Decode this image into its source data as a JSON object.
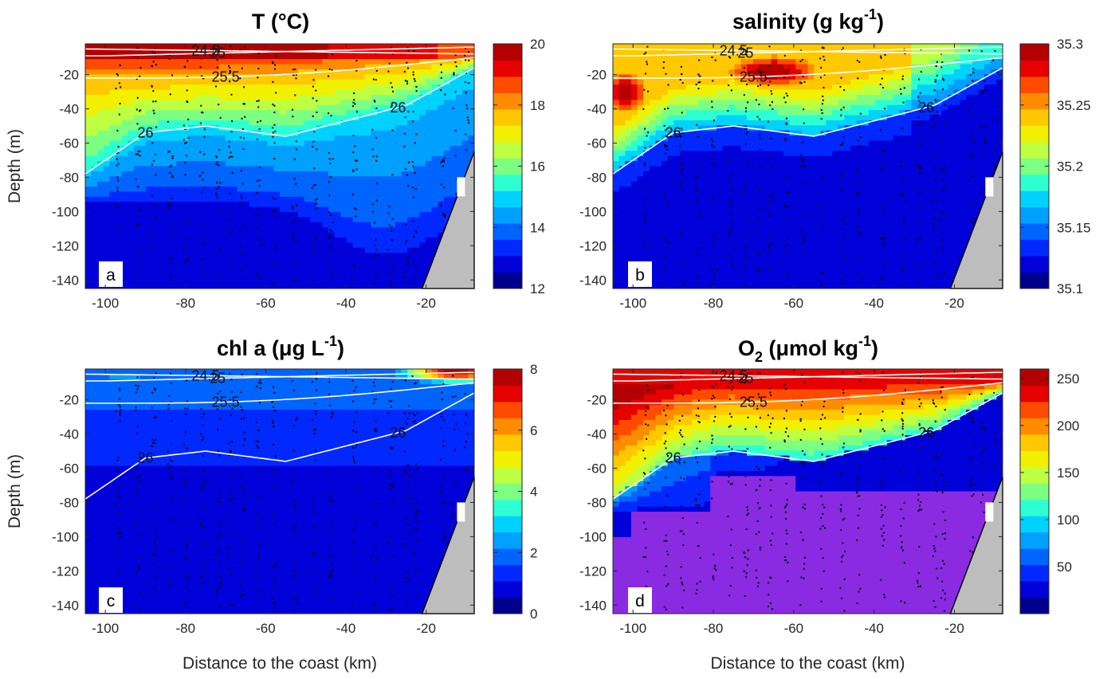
{
  "chart_data": [
    {
      "type": "heatmap",
      "panel": "a",
      "title_main": "T (°C)",
      "title_sup": "",
      "title_tail": "",
      "xlabel": "",
      "ylabel": "Depth (m)",
      "xlim": [
        -105,
        -8
      ],
      "ylim": [
        -145,
        -2
      ],
      "xticks": [
        "-100",
        "-80",
        "-60",
        "-40",
        "-20"
      ],
      "yticks": [
        "-20",
        "-40",
        "-60",
        "-80",
        "-100",
        "-120",
        "-140"
      ],
      "colorbar": {
        "min": 12,
        "max": 20,
        "ticks": [
          "12",
          "14",
          "16",
          "18",
          "20"
        ]
      },
      "isopycnals": [
        "24.5",
        "25",
        "25.5",
        "26"
      ]
    },
    {
      "type": "heatmap",
      "panel": "b",
      "title_main": "salinity (g kg",
      "title_sup": "-1",
      "title_tail": ")",
      "xlabel": "",
      "ylabel": "",
      "xlim": [
        -105,
        -8
      ],
      "ylim": [
        -145,
        -2
      ],
      "xticks": [
        "-100",
        "-80",
        "-60",
        "-40",
        "-20"
      ],
      "yticks": [
        "-20",
        "-40",
        "-60",
        "-80",
        "-100",
        "-120",
        "-140"
      ],
      "colorbar": {
        "min": 35.1,
        "max": 35.3,
        "ticks": [
          "35.1",
          "35.15",
          "35.2",
          "35.25",
          "35.3"
        ]
      },
      "isopycnals": [
        "24.5",
        "25",
        "25.5",
        "26"
      ]
    },
    {
      "type": "heatmap",
      "panel": "c",
      "title_main": "chl a (μg L",
      "title_sup": "-1",
      "title_tail": ")",
      "xlabel": "Distance to the coast (km)",
      "ylabel": "Depth (m)",
      "xlim": [
        -105,
        -8
      ],
      "ylim": [
        -145,
        -2
      ],
      "xticks": [
        "-100",
        "-80",
        "-60",
        "-40",
        "-20"
      ],
      "yticks": [
        "-20",
        "-40",
        "-60",
        "-80",
        "-100",
        "-120",
        "-140"
      ],
      "colorbar": {
        "min": 0,
        "max": 8,
        "ticks": [
          "0",
          "2",
          "4",
          "6",
          "8"
        ]
      },
      "isopycnals": [
        "24.5",
        "25",
        "25.5",
        "26"
      ]
    },
    {
      "type": "heatmap",
      "panel": "d",
      "title_main": "O",
      "title_sub": "2",
      "title_mid": " (μmol kg",
      "title_sup": "-1",
      "title_tail": ")",
      "xlabel": "Distance to the coast (km)",
      "ylabel": "",
      "xlim": [
        -105,
        -8
      ],
      "ylim": [
        -145,
        -2
      ],
      "xticks": [
        "-100",
        "-80",
        "-60",
        "-40",
        "-20"
      ],
      "yticks": [
        "-20",
        "-40",
        "-60",
        "-80",
        "-100",
        "-120",
        "-140"
      ],
      "colorbar": {
        "min": 0,
        "max": 260,
        "ticks": [
          "50",
          "100",
          "150",
          "200",
          "250"
        ]
      },
      "isopycnals": [
        "24.5",
        "25",
        "25.5",
        "26"
      ]
    }
  ],
  "colors": {
    "colormap": [
      "#00008f",
      "#0000d9",
      "#0028ff",
      "#0064ff",
      "#00a0ff",
      "#00d2ff",
      "#2dffd2",
      "#7dff82",
      "#beff41",
      "#f0f000",
      "#ffc800",
      "#ff8c00",
      "#ff4b00",
      "#e60000",
      "#b40000"
    ],
    "anoxic": "#8a2be2",
    "land": "#bdbdbd",
    "isopycnal": "#ffffff"
  }
}
